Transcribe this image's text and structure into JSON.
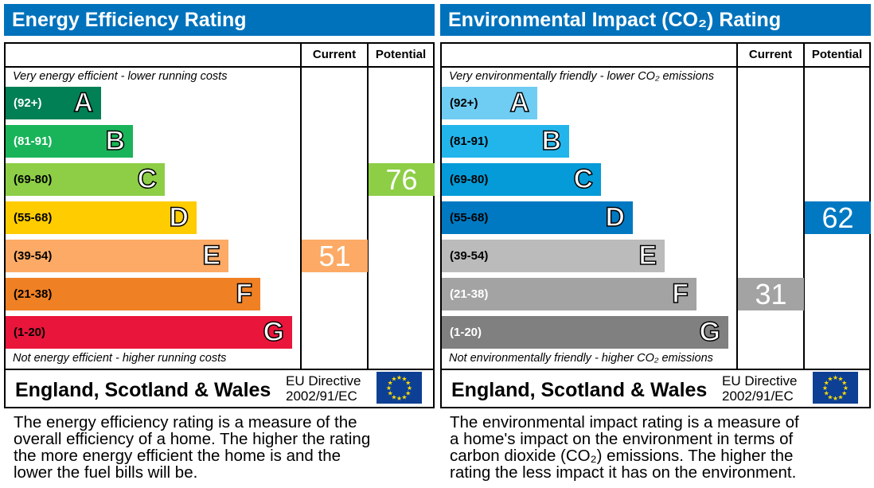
{
  "panels": [
    {
      "id": "energy",
      "title": "Energy Efficiency Rating",
      "current_label": "Current",
      "potential_label": "Potential",
      "top_caption": "Very energy efficient - lower running costs",
      "bottom_caption": "Not energy efficient - higher running costs",
      "bands": [
        {
          "letter": "A",
          "range": "(92+)",
          "color": "#008054",
          "text": "#ffffff"
        },
        {
          "letter": "B",
          "range": "(81-91)",
          "color": "#19b459",
          "text": "#ffffff"
        },
        {
          "letter": "C",
          "range": "(69-80)",
          "color": "#8dce46",
          "text": "#000000"
        },
        {
          "letter": "D",
          "range": "(55-68)",
          "color": "#ffcc00",
          "text": "#000000"
        },
        {
          "letter": "E",
          "range": "(39-54)",
          "color": "#fcaa65",
          "text": "#000000"
        },
        {
          "letter": "F",
          "range": "(21-38)",
          "color": "#ef8023",
          "text": "#000000"
        },
        {
          "letter": "G",
          "range": "(1-20)",
          "color": "#e9153b",
          "text": "#000000"
        }
      ],
      "current": {
        "value": "51",
        "band": "E"
      },
      "potential": {
        "value": "76",
        "band": "C"
      },
      "region": "England, Scotland & Wales",
      "directive": [
        "EU Directive",
        "2002/91/EC"
      ],
      "description": [
        "The energy efficiency rating is a measure of the",
        "overall efficiency of a home. The higher the rating",
        "the more energy efficient the home is and the",
        "lower the fuel bills will be."
      ]
    },
    {
      "id": "environment",
      "title": "Environmental Impact (CO₂) Rating",
      "current_label": "Current",
      "potential_label": "Potential",
      "top_caption": "Very environmentally friendly - lower CO₂ emissions",
      "bottom_caption": "Not environmentally friendly - higher CO₂ emissions",
      "bands": [
        {
          "letter": "A",
          "range": "(92+)",
          "color": "#6fcdf3",
          "text": "#000000"
        },
        {
          "letter": "B",
          "range": "(81-91)",
          "color": "#22b5ec",
          "text": "#000000"
        },
        {
          "letter": "C",
          "range": "(69-80)",
          "color": "#049bd8",
          "text": "#000000"
        },
        {
          "letter": "D",
          "range": "(55-68)",
          "color": "#0079c2",
          "text": "#000000"
        },
        {
          "letter": "E",
          "range": "(39-54)",
          "color": "#bbbbbb",
          "text": "#000000"
        },
        {
          "letter": "F",
          "range": "(21-38)",
          "color": "#a3a3a3",
          "text": "#ffffff"
        },
        {
          "letter": "G",
          "range": "(1-20)",
          "color": "#808080",
          "text": "#ffffff"
        }
      ],
      "current": {
        "value": "31",
        "band": "F"
      },
      "potential": {
        "value": "62",
        "band": "D"
      },
      "region": "England, Scotland & Wales",
      "directive": [
        "EU Directive",
        "2002/91/EC"
      ],
      "description": [
        "The environmental impact rating is a measure of",
        "a home's impact on the environment in terms of",
        "carbon dioxide (CO₂) emissions. The higher the",
        "rating the less impact it has on the environment."
      ]
    }
  ]
}
